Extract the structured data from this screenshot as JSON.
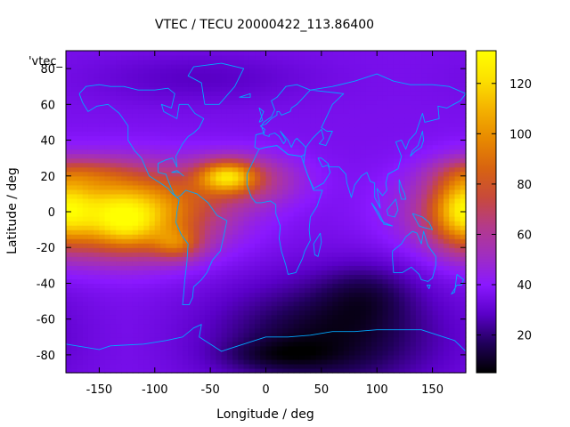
{
  "chart_data": {
    "type": "heatmap",
    "title": "VTEC / TECU 20000422_113.86400",
    "xlabel": "Longitude / deg",
    "ylabel": "Latitude / deg",
    "series_key": "'vtec_",
    "xlim": [
      -180,
      180
    ],
    "ylim": [
      -90,
      90
    ],
    "xticks": [
      -150,
      -100,
      -50,
      0,
      50,
      100,
      150
    ],
    "yticks": [
      -80,
      -60,
      -40,
      -20,
      0,
      20,
      40,
      60,
      80
    ],
    "colorbar": {
      "ticks": [
        20,
        40,
        60,
        80,
        100,
        120
      ],
      "range": [
        5,
        133
      ],
      "stops": [
        "#000000",
        "#20005a",
        "#5a00c8",
        "#8a18ff",
        "#a02ec0",
        "#b43a8a",
        "#c84a3a",
        "#d86410",
        "#e88a00",
        "#f4b200",
        "#fce000",
        "#ffff00"
      ]
    },
    "grid": false,
    "overlay": "coastlines",
    "overlay_color": "#00a8ff",
    "cell_size_deg": [
      5,
      2.5
    ],
    "field_model": {
      "background_vtec": 36,
      "features": [
        {
          "feature": "equatorial-anomaly-pacific",
          "lon": -130,
          "lat": 0,
          "sigma_lon": 55,
          "sigma_lat": 16,
          "amplitude": 88
        },
        {
          "feature": "peak-pacific",
          "lon": -125,
          "lat": -8,
          "sigma_lon": 18,
          "sigma_lat": 9,
          "amplitude": 18
        },
        {
          "feature": "hotspot-atlantic",
          "lon": -35,
          "lat": 20,
          "sigma_lon": 18,
          "sigma_lat": 6,
          "amplitude": 55
        },
        {
          "feature": "band-atlantic",
          "lon": -20,
          "lat": 18,
          "sigma_lon": 35,
          "sigma_lat": 10,
          "amplitude": 28
        },
        {
          "feature": "band-north-pacific",
          "lon": -165,
          "lat": 22,
          "sigma_lon": 30,
          "sigma_lat": 6,
          "amplitude": 18
        },
        {
          "feature": "band-west-pacific",
          "lon": 175,
          "lat": 2,
          "sigma_lon": 18,
          "sigma_lat": 14,
          "amplitude": 40
        },
        {
          "feature": "band-south-america",
          "lon": -80,
          "lat": -18,
          "sigma_lon": 15,
          "sigma_lat": 6,
          "amplitude": 30
        },
        {
          "feature": "depletion-south",
          "lon": 55,
          "lat": -70,
          "sigma_lon": 70,
          "sigma_lat": 22,
          "amplitude": -27
        },
        {
          "feature": "depletion-south-indian",
          "lon": 90,
          "lat": -45,
          "sigma_lon": 30,
          "sigma_lat": 12,
          "amplitude": -12
        },
        {
          "feature": "depletion-antarctica",
          "lon": 10,
          "lat": -80,
          "sigma_lon": 35,
          "sigma_lat": 6,
          "amplitude": -10
        },
        {
          "feature": "north-polar",
          "lon": -60,
          "lat": 75,
          "sigma_lon": 70,
          "sigma_lat": 10,
          "amplitude": -8
        }
      ]
    },
    "coastlines": [
      [
        [
          -168,
          66
        ],
        [
          -162,
          70
        ],
        [
          -150,
          71
        ],
        [
          -140,
          70
        ],
        [
          -128,
          70
        ],
        [
          -115,
          68
        ],
        [
          -100,
          68
        ],
        [
          -88,
          69
        ],
        [
          -82,
          66
        ],
        [
          -85,
          58
        ],
        [
          -94,
          60
        ],
        [
          -92,
          56
        ],
        [
          -80,
          52
        ],
        [
          -78,
          60
        ],
        [
          -70,
          60
        ],
        [
          -64,
          55
        ],
        [
          -56,
          52
        ],
        [
          -60,
          47
        ],
        [
          -65,
          44
        ],
        [
          -70,
          42
        ],
        [
          -75,
          38
        ],
        [
          -81,
          31
        ],
        [
          -80,
          25
        ],
        [
          -84,
          30
        ],
        [
          -90,
          29
        ],
        [
          -97,
          27
        ],
        [
          -97,
          22
        ],
        [
          -90,
          21
        ],
        [
          -87,
          16
        ],
        [
          -83,
          10
        ],
        [
          -80,
          8
        ],
        [
          -77,
          9
        ],
        [
          -72,
          12
        ],
        [
          -62,
          10
        ],
        [
          -52,
          5
        ],
        [
          -44,
          -2
        ],
        [
          -35,
          -5
        ],
        [
          -38,
          -14
        ],
        [
          -41,
          -22
        ],
        [
          -48,
          -27
        ],
        [
          -53,
          -34
        ],
        [
          -58,
          -38
        ],
        [
          -65,
          -42
        ],
        [
          -66,
          -48
        ],
        [
          -69,
          -52
        ],
        [
          -75,
          -52
        ],
        [
          -74,
          -46
        ],
        [
          -73,
          -38
        ],
        [
          -71,
          -28
        ],
        [
          -70,
          -18
        ],
        [
          -76,
          -13
        ],
        [
          -81,
          -6
        ],
        [
          -80,
          0
        ],
        [
          -78,
          7
        ],
        [
          -84,
          10
        ],
        [
          -88,
          13
        ],
        [
          -95,
          16
        ],
        [
          -105,
          20
        ],
        [
          -112,
          30
        ],
        [
          -118,
          34
        ],
        [
          -124,
          40
        ],
        [
          -124,
          48
        ],
        [
          -132,
          55
        ],
        [
          -142,
          60
        ],
        [
          -152,
          59
        ],
        [
          -160,
          56
        ],
        [
          -165,
          61
        ],
        [
          -168,
          66
        ]
      ],
      [
        [
          -55,
          60
        ],
        [
          -42,
          60
        ],
        [
          -28,
          70
        ],
        [
          -20,
          80
        ],
        [
          -40,
          83
        ],
        [
          -65,
          81
        ],
        [
          -70,
          76
        ],
        [
          -58,
          72
        ],
        [
          -55,
          60
        ]
      ],
      [
        [
          -10,
          36
        ],
        [
          -9,
          43
        ],
        [
          -2,
          44
        ],
        [
          -4,
          48
        ],
        [
          -2,
          50
        ],
        [
          5,
          53
        ],
        [
          8,
          57
        ],
        [
          5,
          62
        ],
        [
          10,
          64
        ],
        [
          18,
          70
        ],
        [
          28,
          71
        ],
        [
          40,
          68
        ],
        [
          34,
          64
        ],
        [
          28,
          60
        ],
        [
          23,
          58
        ],
        [
          22,
          56
        ],
        [
          14,
          54
        ],
        [
          12,
          56
        ],
        [
          10,
          56
        ],
        [
          10,
          54
        ],
        [
          5,
          52
        ],
        [
          0,
          49
        ],
        [
          -5,
          48
        ],
        [
          -1,
          46
        ],
        [
          -2,
          43
        ],
        [
          3,
          42
        ],
        [
          3,
          43
        ],
        [
          8,
          44
        ],
        [
          12,
          42
        ],
        [
          16,
          38
        ],
        [
          18,
          40
        ],
        [
          13,
          45
        ],
        [
          20,
          40
        ],
        [
          23,
          36
        ],
        [
          26,
          40
        ],
        [
          28,
          41
        ],
        [
          36,
          36
        ],
        [
          35,
          32
        ],
        [
          32,
          31
        ],
        [
          20,
          32
        ],
        [
          10,
          37
        ],
        [
          0,
          36
        ],
        [
          -6,
          35
        ],
        [
          -10,
          36
        ]
      ],
      [
        [
          40,
          68
        ],
        [
          60,
          70
        ],
        [
          80,
          73
        ],
        [
          100,
          77
        ],
        [
          115,
          73
        ],
        [
          130,
          71
        ],
        [
          150,
          71
        ],
        [
          165,
          70
        ],
        [
          180,
          66
        ],
        [
          175,
          62
        ],
        [
          163,
          58
        ],
        [
          155,
          59
        ],
        [
          156,
          52
        ],
        [
          143,
          50
        ],
        [
          141,
          55
        ],
        [
          135,
          44
        ],
        [
          129,
          40
        ],
        [
          126,
          35
        ],
        [
          122,
          40
        ],
        [
          117,
          39
        ],
        [
          122,
          31
        ],
        [
          119,
          24
        ],
        [
          110,
          21
        ],
        [
          108,
          16
        ],
        [
          109,
          12
        ],
        [
          105,
          9
        ],
        [
          100,
          13
        ],
        [
          103,
          2
        ],
        [
          98,
          8
        ],
        [
          98,
          16
        ],
        [
          94,
          17
        ],
        [
          91,
          22
        ],
        [
          86,
          20
        ],
        [
          80,
          15
        ],
        [
          77,
          8
        ],
        [
          73,
          16
        ],
        [
          72,
          21
        ],
        [
          66,
          25
        ],
        [
          57,
          25
        ],
        [
          56,
          27
        ],
        [
          50,
          30
        ],
        [
          47,
          30
        ],
        [
          51,
          25
        ],
        [
          56,
          26
        ],
        [
          58,
          22
        ],
        [
          52,
          16
        ],
        [
          43,
          13
        ],
        [
          38,
          20
        ],
        [
          34,
          27
        ],
        [
          35,
          32
        ],
        [
          36,
          36
        ],
        [
          42,
          41
        ],
        [
          50,
          46
        ],
        [
          52,
          41
        ],
        [
          48,
          38
        ],
        [
          54,
          37
        ],
        [
          60,
          45
        ],
        [
          55,
          45
        ],
        [
          50,
          47
        ],
        [
          60,
          60
        ],
        [
          70,
          66
        ],
        [
          40,
          68
        ]
      ],
      [
        [
          -17,
          15
        ],
        [
          -17,
          21
        ],
        [
          -10,
          30
        ],
        [
          -6,
          35
        ],
        [
          0,
          36
        ],
        [
          10,
          37
        ],
        [
          20,
          32
        ],
        [
          32,
          31
        ],
        [
          34,
          27
        ],
        [
          38,
          20
        ],
        [
          43,
          12
        ],
        [
          51,
          12
        ],
        [
          46,
          3
        ],
        [
          40,
          -3
        ],
        [
          39,
          -10
        ],
        [
          40,
          -16
        ],
        [
          35,
          -22
        ],
        [
          33,
          -26
        ],
        [
          27,
          -34
        ],
        [
          20,
          -35
        ],
        [
          18,
          -30
        ],
        [
          14,
          -22
        ],
        [
          12,
          -15
        ],
        [
          13,
          -8
        ],
        [
          9,
          -1
        ],
        [
          9,
          4
        ],
        [
          4,
          6
        ],
        [
          -4,
          5
        ],
        [
          -9,
          5
        ],
        [
          -13,
          8
        ],
        [
          -17,
          15
        ]
      ],
      [
        [
          49,
          -12
        ],
        [
          50,
          -17
        ],
        [
          47,
          -25
        ],
        [
          44,
          -24
        ],
        [
          43,
          -18
        ],
        [
          49,
          -12
        ]
      ],
      [
        [
          114,
          -22
        ],
        [
          114,
          -26
        ],
        [
          115,
          -34
        ],
        [
          123,
          -34
        ],
        [
          131,
          -31
        ],
        [
          138,
          -35
        ],
        [
          140,
          -38
        ],
        [
          146,
          -39
        ],
        [
          150,
          -37
        ],
        [
          153,
          -30
        ],
        [
          153,
          -25
        ],
        [
          146,
          -19
        ],
        [
          142,
          -11
        ],
        [
          140,
          -18
        ],
        [
          136,
          -12
        ],
        [
          132,
          -11
        ],
        [
          126,
          -14
        ],
        [
          122,
          -18
        ],
        [
          114,
          -22
        ]
      ],
      [
        [
          145,
          -41
        ],
        [
          148,
          -41
        ],
        [
          147,
          -43
        ],
        [
          145,
          -41
        ]
      ],
      [
        [
          172,
          -35
        ],
        [
          178,
          -38
        ],
        [
          176,
          -41
        ],
        [
          172,
          -41
        ],
        [
          167,
          -46
        ],
        [
          170,
          -45
        ],
        [
          172,
          -35
        ]
      ],
      [
        [
          130,
          31
        ],
        [
          135,
          34
        ],
        [
          140,
          36
        ],
        [
          142,
          40
        ],
        [
          141,
          45
        ],
        [
          137,
          37
        ],
        [
          132,
          34
        ],
        [
          130,
          31
        ]
      ],
      [
        [
          -6,
          50
        ],
        [
          -2,
          56
        ],
        [
          -6,
          58
        ],
        [
          -3,
          51
        ],
        [
          -6,
          50
        ]
      ],
      [
        [
          95,
          5
        ],
        [
          104,
          -5
        ],
        [
          106,
          -6
        ],
        [
          101,
          0
        ],
        [
          95,
          5
        ]
      ],
      [
        [
          106,
          -6
        ],
        [
          114,
          -8
        ],
        [
          106,
          -7
        ],
        [
          106,
          -6
        ]
      ],
      [
        [
          109,
          1
        ],
        [
          117,
          7
        ],
        [
          119,
          1
        ],
        [
          116,
          -3
        ],
        [
          110,
          -2
        ],
        [
          109,
          1
        ]
      ],
      [
        [
          132,
          -1
        ],
        [
          141,
          -3
        ],
        [
          147,
          -6
        ],
        [
          150,
          -10
        ],
        [
          143,
          -9
        ],
        [
          138,
          -8
        ],
        [
          132,
          -1
        ]
      ],
      [
        [
          -24,
          64
        ],
        [
          -14,
          66
        ],
        [
          -14,
          64
        ],
        [
          -24,
          64
        ]
      ],
      [
        [
          -180,
          -74
        ],
        [
          -150,
          -77
        ],
        [
          -140,
          -75
        ],
        [
          -110,
          -74
        ],
        [
          -90,
          -72
        ],
        [
          -75,
          -70
        ],
        [
          -65,
          -65
        ],
        [
          -58,
          -63
        ],
        [
          -60,
          -70
        ],
        [
          -40,
          -78
        ],
        [
          -20,
          -74
        ],
        [
          0,
          -70
        ],
        [
          20,
          -70
        ],
        [
          40,
          -69
        ],
        [
          60,
          -67
        ],
        [
          80,
          -67
        ],
        [
          100,
          -66
        ],
        [
          120,
          -66
        ],
        [
          140,
          -66
        ],
        [
          160,
          -70
        ],
        [
          170,
          -72
        ],
        [
          180,
          -78
        ]
      ],
      [
        [
          120,
          18
        ],
        [
          122,
          14
        ],
        [
          125,
          10
        ],
        [
          126,
          7
        ],
        [
          122,
          7
        ],
        [
          120,
          12
        ],
        [
          120,
          18
        ]
      ],
      [
        [
          -85,
          22
        ],
        [
          -78,
          22
        ],
        [
          -74,
          20
        ],
        [
          -80,
          23
        ],
        [
          -85,
          22
        ]
      ]
    ]
  }
}
